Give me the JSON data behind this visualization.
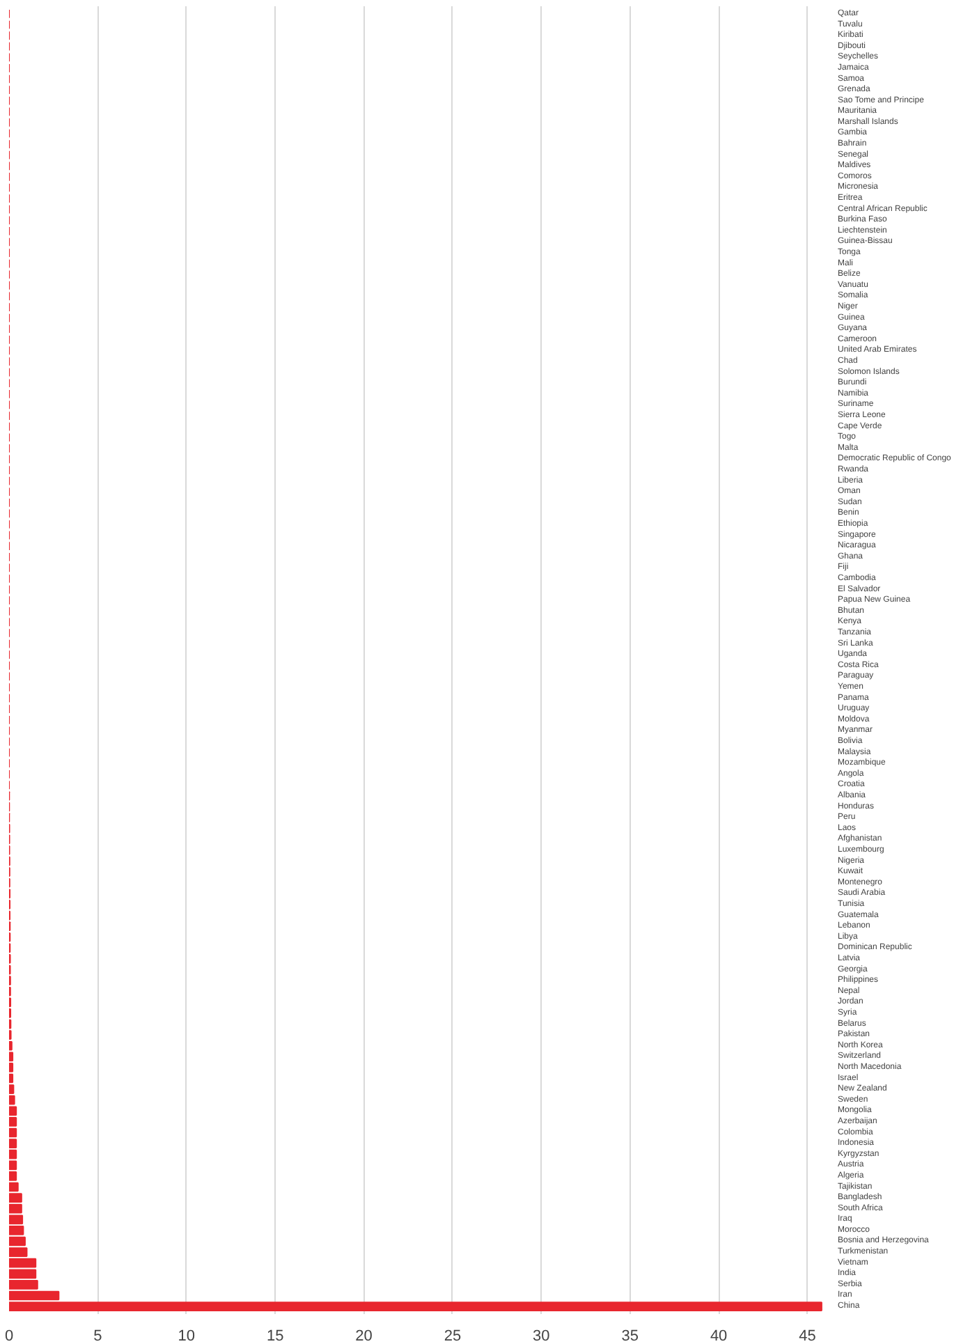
{
  "chart_data": {
    "type": "bar",
    "orientation": "horizontal",
    "color": "#e8262e",
    "grid": "x",
    "categories": [
      "Qatar",
      "Tuvalu",
      "Kiribati",
      "Djibouti",
      "Seychelles",
      "Jamaica",
      "Samoa",
      "Grenada",
      "Sao Tome and Principe",
      "Mauritania",
      "Marshall Islands",
      "Gambia",
      "Bahrain",
      "Senegal",
      "Maldives",
      "Comoros",
      "Micronesia",
      "Eritrea",
      "Central African Republic",
      "Burkina Faso",
      "Liechtenstein",
      "Guinea-Bissau",
      "Tonga",
      "Mali",
      "Belize",
      "Vanuatu",
      "Somalia",
      "Niger",
      "Guinea",
      "Guyana",
      "Cameroon",
      "United Arab Emirates",
      "Chad",
      "Solomon Islands",
      "Burundi",
      "Namibia",
      "Suriname",
      "Sierra Leone",
      "Cape Verde",
      "Togo",
      "Malta",
      "Democratic Republic of Congo",
      "Rwanda",
      "Liberia",
      "Oman",
      "Sudan",
      "Benin",
      "Ethiopia",
      "Singapore",
      "Nicaragua",
      "Ghana",
      "Fiji",
      "Cambodia",
      "El Salvador",
      "Papua New Guinea",
      "Bhutan",
      "Kenya",
      "Tanzania",
      "Sri Lanka",
      "Uganda",
      "Costa Rica",
      "Paraguay",
      "Yemen",
      "Panama",
      "Uruguay",
      "Moldova",
      "Myanmar",
      "Bolivia",
      "Malaysia",
      "Mozambique",
      "Angola",
      "Croatia",
      "Albania",
      "Honduras",
      "Peru",
      "Laos",
      "Afghanistan",
      "Luxembourg",
      "Nigeria",
      "Kuwait",
      "Montenegro",
      "Saudi Arabia",
      "Tunisia",
      "Guatemala",
      "Lebanon",
      "Libya",
      "Dominican Republic",
      "Latvia",
      "Georgia",
      "Philippines",
      "Nepal",
      "Jordan",
      "Syria",
      "Belarus",
      "Pakistan",
      "North Korea",
      "Switzerland",
      "North Macedonia",
      "Israel",
      "New Zealand",
      "Sweden",
      "Mongolia",
      "Azerbaijan",
      "Colombia",
      "Indonesia",
      "Kyrgyzstan",
      "Austria",
      "Algeria",
      "Tajikistan",
      "Bangladesh",
      "South Africa",
      "Iraq",
      "Morocco",
      "Bosnia and Herzegovina",
      "Turkmenistan",
      "Vietnam",
      "India",
      "Serbia",
      "Iran",
      "China"
    ],
    "values": [
      0,
      0,
      0,
      0,
      0,
      0,
      0,
      0,
      0,
      0,
      0,
      0,
      0,
      0,
      0,
      0,
      0,
      0,
      0,
      0,
      0,
      0,
      0,
      0,
      0,
      0,
      0,
      0,
      0,
      0,
      0,
      0,
      0,
      0,
      0,
      0,
      0,
      0,
      0,
      0,
      0,
      0,
      0,
      0,
      0,
      0,
      0,
      0,
      0,
      0,
      0,
      0,
      0,
      0,
      0,
      0,
      0,
      0,
      0,
      0,
      0,
      0,
      0,
      0,
      0,
      0,
      0,
      0,
      0,
      0,
      0,
      0,
      0.01,
      0.01,
      0.01,
      0.02,
      0.02,
      0.02,
      0.03,
      0.03,
      0.03,
      0.04,
      0.04,
      0.04,
      0.05,
      0.05,
      0.05,
      0.06,
      0.06,
      0.07,
      0.07,
      0.08,
      0.08,
      0.09,
      0.1,
      0.15,
      0.2,
      0.2,
      0.2,
      0.25,
      0.3,
      0.4,
      0.4,
      0.4,
      0.4,
      0.4,
      0.4,
      0.4,
      0.5,
      0.7,
      0.7,
      0.75,
      0.8,
      0.9,
      1.0,
      1.5,
      1.5,
      1.6,
      2.8,
      45.8
    ],
    "xlim": [
      0,
      46
    ],
    "xticks": [
      0,
      5,
      10,
      15,
      20,
      25,
      30,
      35,
      40,
      45
    ]
  }
}
